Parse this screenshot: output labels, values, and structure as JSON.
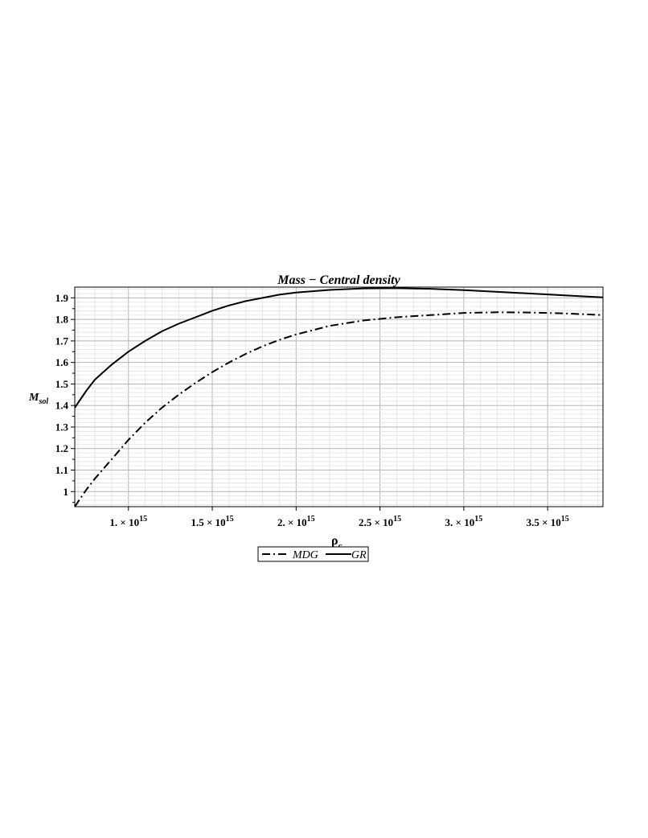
{
  "chart_data": {
    "type": "line",
    "title": "Mass − Central density",
    "ylabel": {
      "base": "M",
      "sub": "sol"
    },
    "xlabel": {
      "base": "ρ",
      "sub": "c"
    },
    "xlim": [
      680000000000000.0,
      3830000000000000.0
    ],
    "ylim": [
      0.93,
      1.95
    ],
    "x_ticks": [
      {
        "value": 1000000000000000.0,
        "mantissa": "1.",
        "exp": "15"
      },
      {
        "value": 1500000000000000.0,
        "mantissa": "1.5",
        "exp": "15"
      },
      {
        "value": 2000000000000000.0,
        "mantissa": "2.",
        "exp": "15"
      },
      {
        "value": 2500000000000000.0,
        "mantissa": "2.5",
        "exp": "15"
      },
      {
        "value": 3000000000000000.0,
        "mantissa": "3.",
        "exp": "15"
      },
      {
        "value": 3500000000000000.0,
        "mantissa": "3.5",
        "exp": "15"
      }
    ],
    "y_ticks": [
      1,
      1.1,
      1.2,
      1.3,
      1.4,
      1.5,
      1.6,
      1.7,
      1.8,
      1.9
    ],
    "y_tick_labels": [
      "1",
      "1.1",
      "1.2",
      "1.3",
      "1.4",
      "1.5",
      "1.6",
      "1.7",
      "1.8",
      "1.9"
    ],
    "grid": true,
    "legend_position": "bottom-center",
    "series": [
      {
        "name": "MDG",
        "dash": "dash-dot",
        "color": "#000000",
        "x": [
          680000000000000.0,
          750000000000000.0,
          800000000000000.0,
          900000000000000.0,
          1000000000000000.0,
          1100000000000000.0,
          1200000000000000.0,
          1300000000000000.0,
          1400000000000000.0,
          1500000000000000.0,
          1600000000000000.0,
          1700000000000000.0,
          1800000000000000.0,
          1900000000000000.0,
          2000000000000000.0,
          2200000000000000.0,
          2400000000000000.0,
          2600000000000000.0,
          2800000000000000.0,
          3000000000000000.0,
          3200000000000000.0,
          3400000000000000.0,
          3600000000000000.0,
          3830000000000000.0
        ],
        "y": [
          0.93,
          1.01,
          1.06,
          1.15,
          1.24,
          1.32,
          1.39,
          1.45,
          1.505,
          1.555,
          1.6,
          1.64,
          1.675,
          1.705,
          1.73,
          1.77,
          1.795,
          1.81,
          1.82,
          1.83,
          1.833,
          1.832,
          1.828,
          1.82
        ]
      },
      {
        "name": "GR",
        "dash": "solid",
        "color": "#000000",
        "x": [
          680000000000000.0,
          750000000000000.0,
          800000000000000.0,
          900000000000000.0,
          1000000000000000.0,
          1100000000000000.0,
          1200000000000000.0,
          1300000000000000.0,
          1400000000000000.0,
          1500000000000000.0,
          1600000000000000.0,
          1700000000000000.0,
          1800000000000000.0,
          1900000000000000.0,
          2000000000000000.0,
          2200000000000000.0,
          2400000000000000.0,
          2600000000000000.0,
          2800000000000000.0,
          3000000000000000.0,
          3200000000000000.0,
          3400000000000000.0,
          3600000000000000.0,
          3830000000000000.0
        ],
        "y": [
          1.39,
          1.47,
          1.52,
          1.59,
          1.65,
          1.7,
          1.745,
          1.78,
          1.81,
          1.84,
          1.865,
          1.885,
          1.9,
          1.915,
          1.925,
          1.937,
          1.944,
          1.945,
          1.942,
          1.936,
          1.928,
          1.92,
          1.912,
          1.902
        ]
      }
    ]
  }
}
